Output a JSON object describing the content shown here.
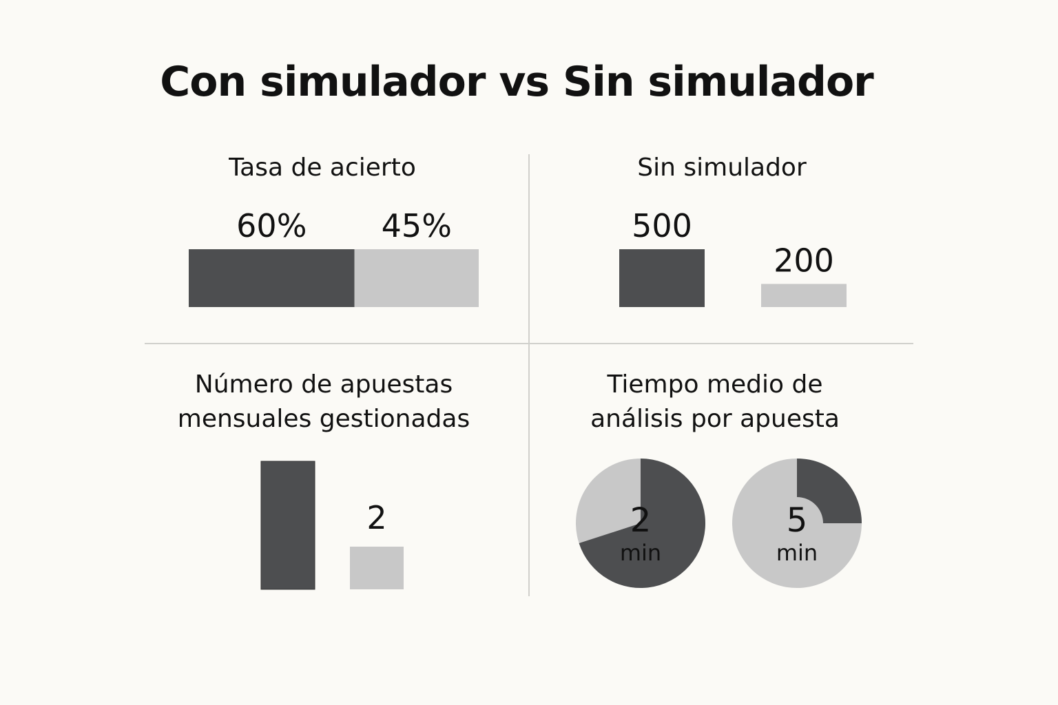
{
  "title": "Con simulador vs Sin simulador",
  "colors": {
    "dark": "#4d4e50",
    "light": "#c8c8c8",
    "background": "#fbfaf6",
    "divider": "#d0d0cc"
  },
  "chart_data": [
    {
      "type": "bar",
      "orientation": "horizontal-stacked",
      "title": "Tasa de acierto",
      "categories": [
        "",
        ""
      ],
      "values": [
        60,
        45
      ],
      "value_labels": [
        "60%",
        "45%"
      ],
      "unit": "%"
    },
    {
      "type": "bar",
      "title": "Sin simulador",
      "categories": [
        "",
        ""
      ],
      "values": [
        500,
        200
      ],
      "value_labels": [
        "500",
        "200"
      ]
    },
    {
      "type": "bar",
      "title": "Número de apuestas mensuales gestionadas",
      "categories": [
        "",
        ""
      ],
      "values": [
        null,
        2
      ],
      "value_labels": [
        "",
        "2"
      ]
    },
    {
      "type": "pie",
      "title": "Tiempo medio de análisis por apuesta",
      "charts": [
        {
          "value_label": "2",
          "unit_label": "min",
          "dark_fraction": 0.7
        },
        {
          "value_label": "5",
          "unit_label": "min",
          "dark_fraction": 0.25
        }
      ]
    }
  ]
}
